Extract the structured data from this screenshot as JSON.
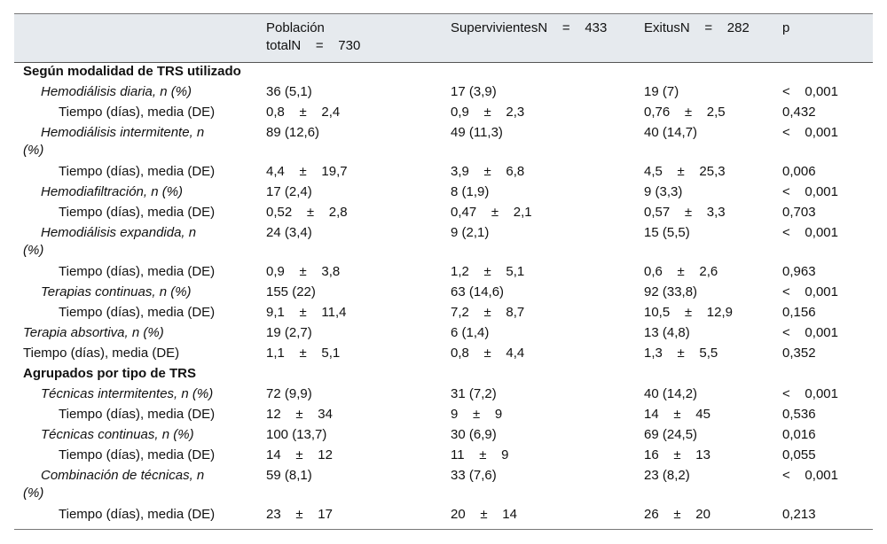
{
  "header": {
    "col1_line1": "Población",
    "col1_line2": "totalN    =    730",
    "col2": "SupervivientesN    =    433",
    "col3": "ExitusN    =    282",
    "col4": "p"
  },
  "rows": [
    {
      "label": "Según modalidad de TRS utilizado",
      "type": "section"
    },
    {
      "label": "Hemodiálisis diaria, n (%)",
      "c1": "36 (5,1)",
      "c2": "17 (3,9)",
      "c3": "19 (7)",
      "p": "<    0,001"
    },
    {
      "label": "Tiempo (días), media (DE)",
      "c1": "0,8    ±    2,4",
      "c2": "0,9    ±    2,3",
      "c3": "0,76    ±    2,5",
      "p": "0,432"
    },
    {
      "label_line1": "Hemodiálisis intermitente, n",
      "label_line2": "(%)",
      "c1": "89 (12,6)",
      "c2": "49 (11,3)",
      "c3": "40 (14,7)",
      "p": "<    0,001"
    },
    {
      "label": "Tiempo (días), media (DE)",
      "c1": "4,4    ±    19,7",
      "c2": "3,9    ±    6,8",
      "c3": "4,5    ±    25,3",
      "p": "0,006"
    },
    {
      "label": "Hemodiafiltración, n (%)",
      "c1": "17 (2,4)",
      "c2": "8 (1,9)",
      "c3": "9 (3,3)",
      "p": "<    0,001"
    },
    {
      "label": "Tiempo (días), media (DE)",
      "c1": "0,52    ±    2,8",
      "c2": "0,47    ±    2,1",
      "c3": "0,57    ±    3,3",
      "p": "0,703"
    },
    {
      "label_line1": "Hemodiálisis expandida, n",
      "label_line2": "(%)",
      "c1": "24 (3,4)",
      "c2": "9 (2,1)",
      "c3": "15 (5,5)",
      "p": "<    0,001"
    },
    {
      "label": "Tiempo (días), media (DE)",
      "c1": "0,9    ±    3,8",
      "c2": "1,2    ±    5,1",
      "c3": "0,6    ±    2,6",
      "p": "0,963"
    },
    {
      "label": "Terapias continuas, n (%)",
      "c1": "155 (22)",
      "c2": "63 (14,6)",
      "c3": "92 (33,8)",
      "p": "<    0,001"
    },
    {
      "label": "Tiempo (días), media (DE)",
      "c1": "9,1    ±    11,4",
      "c2": "7,2    ±    8,7",
      "c3": "10,5    ±    12,9",
      "p": "0,156"
    },
    {
      "label": "Terapia absortiva, n (%)",
      "c1": "19 (2,7)",
      "c2": "6 (1,4)",
      "c3": "13 (4,8)",
      "p": "<    0,001"
    },
    {
      "label": "Tiempo (días), media (DE)",
      "c1": "1,1    ±    5,1",
      "c2": "0,8    ±    4,4",
      "c3": "1,3    ±    5,5",
      "p": "0,352"
    },
    {
      "label": "Agrupados por tipo de TRS",
      "type": "section"
    },
    {
      "label": "Técnicas intermitentes, n (%)",
      "c1": "72 (9,9)",
      "c2": "31 (7,2)",
      "c3": "40 (14,2)",
      "p": "<    0,001"
    },
    {
      "label": "Tiempo (días), media (DE)",
      "c1": "12    ±    34",
      "c2": "9    ±    9",
      "c3": "14    ±    45",
      "p": "0,536"
    },
    {
      "label": "Técnicas continuas, n (%)",
      "c1": "100 (13,7)",
      "c2": "30 (6,9)",
      "c3": "69 (24,5)",
      "p": "0,016"
    },
    {
      "label": "Tiempo (días), media (DE)",
      "c1": "14    ±    12",
      "c2": "11    ±    9",
      "c3": "16    ±    13",
      "p": "0,055"
    },
    {
      "label_line1": "Combinación de técnicas, n",
      "label_line2": "(%)",
      "c1": "59 (8,1)",
      "c2": "33 (7,6)",
      "c3": "23 (8,2)",
      "p": "<    0,001"
    },
    {
      "label": "Tiempo (días), media (DE)",
      "c1": "23    ±    17",
      "c2": "20    ±    14",
      "c3": "26    ±    20",
      "p": "0,213"
    }
  ]
}
